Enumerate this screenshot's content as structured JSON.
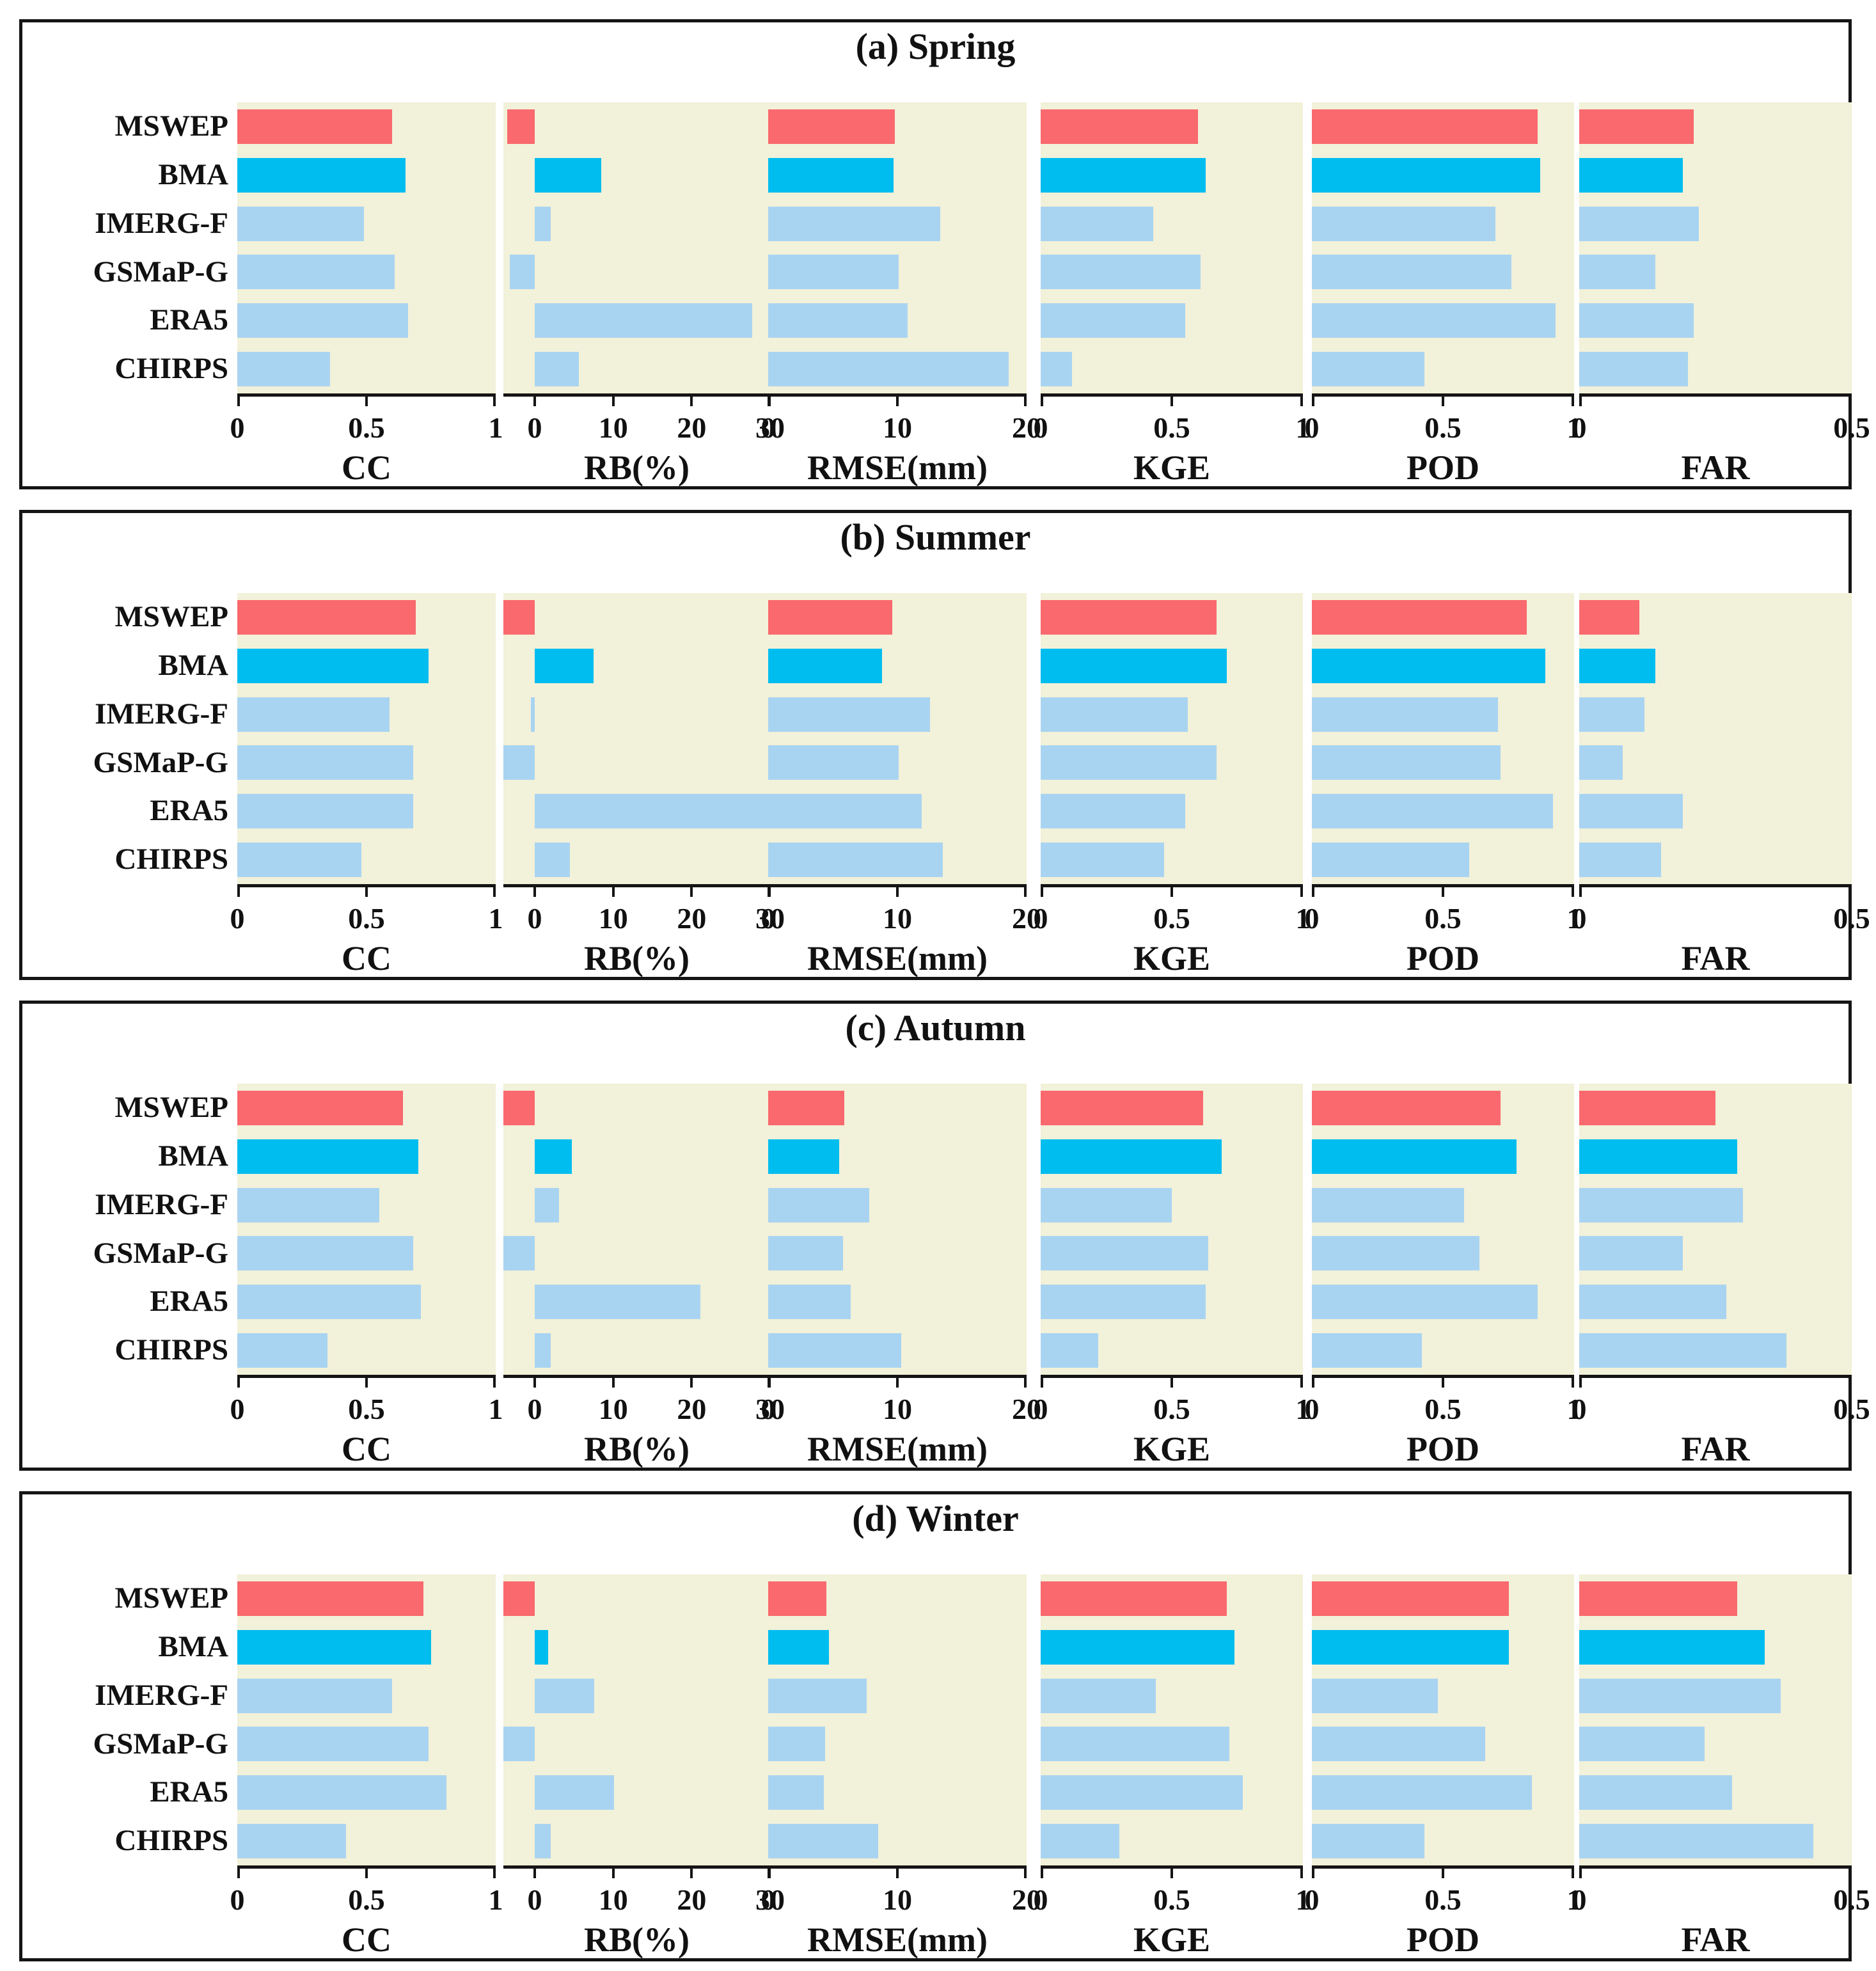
{
  "figure": {
    "background": "#ffffff",
    "plot_background": "#F2F1D9",
    "axis_color": "#151515",
    "series_colors": {
      "MSWEP": "#F9696E",
      "BMA": "#00BDF0",
      "default": "#A9D4F1"
    }
  },
  "chart_data": [
    {
      "type": "bar",
      "orientation": "horizontal",
      "title": "(a) Spring",
      "categories": [
        "MSWEP",
        "BMA",
        "IMERG-F",
        "GSMaP-G",
        "ERA5",
        "CHIRPS"
      ],
      "legend": "none",
      "grid": false,
      "metrics": [
        {
          "label": "CC",
          "xlim": [
            0,
            1
          ],
          "ticks": [
            0,
            0.5,
            1
          ],
          "values": [
            0.6,
            0.65,
            0.49,
            0.61,
            0.66,
            0.36
          ]
        },
        {
          "label": "RB(%)",
          "xlim": [
            -4,
            30
          ],
          "ticks": [
            0,
            10,
            20,
            30
          ],
          "values": [
            -3.5,
            8.5,
            2.0,
            -3.2,
            27.7,
            5.6
          ]
        },
        {
          "label": "RMSE(mm)",
          "xlim": [
            0,
            20
          ],
          "ticks": [
            0,
            10,
            20
          ],
          "values": [
            9.8,
            9.7,
            13.3,
            10.1,
            10.8,
            18.6
          ]
        },
        {
          "label": "KGE",
          "xlim": [
            0,
            1
          ],
          "ticks": [
            0,
            0.5,
            1
          ],
          "values": [
            0.6,
            0.63,
            0.43,
            0.61,
            0.55,
            0.12
          ]
        },
        {
          "label": "POD",
          "xlim": [
            0,
            1
          ],
          "ticks": [
            0,
            0.5,
            1
          ],
          "values": [
            0.86,
            0.87,
            0.7,
            0.76,
            0.93,
            0.43
          ]
        },
        {
          "label": "FAR",
          "xlim": [
            0,
            0.5
          ],
          "ticks": [
            0,
            0.5
          ],
          "values": [
            0.21,
            0.19,
            0.22,
            0.14,
            0.21,
            0.2
          ]
        }
      ]
    },
    {
      "type": "bar",
      "orientation": "horizontal",
      "title": "(b) Summer",
      "categories": [
        "MSWEP",
        "BMA",
        "IMERG-F",
        "GSMaP-G",
        "ERA5",
        "CHIRPS"
      ],
      "legend": "none",
      "grid": false,
      "metrics": [
        {
          "label": "CC",
          "xlim": [
            0,
            1
          ],
          "ticks": [
            0,
            0.5,
            1
          ],
          "values": [
            0.69,
            0.74,
            0.59,
            0.68,
            0.68,
            0.48
          ]
        },
        {
          "label": "RB(%)",
          "xlim": [
            -4,
            30
          ],
          "ticks": [
            0,
            10,
            20,
            30
          ],
          "values": [
            -4.0,
            7.5,
            -0.5,
            -4.0,
            30.0,
            4.5
          ]
        },
        {
          "label": "RMSE(mm)",
          "xlim": [
            0,
            20
          ],
          "ticks": [
            0,
            10,
            20
          ],
          "values": [
            9.6,
            8.8,
            12.5,
            10.1,
            11.9,
            13.5
          ]
        },
        {
          "label": "KGE",
          "xlim": [
            0,
            1
          ],
          "ticks": [
            0,
            0.5,
            1
          ],
          "values": [
            0.67,
            0.71,
            0.56,
            0.67,
            0.55,
            0.47
          ]
        },
        {
          "label": "POD",
          "xlim": [
            0,
            1
          ],
          "ticks": [
            0,
            0.5,
            1
          ],
          "values": [
            0.82,
            0.89,
            0.71,
            0.72,
            0.92,
            0.6
          ]
        },
        {
          "label": "FAR",
          "xlim": [
            0,
            0.5
          ],
          "ticks": [
            0,
            0.5
          ],
          "values": [
            0.11,
            0.14,
            0.12,
            0.08,
            0.19,
            0.15
          ]
        }
      ]
    },
    {
      "type": "bar",
      "orientation": "horizontal",
      "title": "(c) Autumn",
      "categories": [
        "MSWEP",
        "BMA",
        "IMERG-F",
        "GSMaP-G",
        "ERA5",
        "CHIRPS"
      ],
      "legend": "none",
      "grid": false,
      "metrics": [
        {
          "label": "CC",
          "xlim": [
            0,
            1
          ],
          "ticks": [
            0,
            0.5,
            1
          ],
          "values": [
            0.64,
            0.7,
            0.55,
            0.68,
            0.71,
            0.35
          ]
        },
        {
          "label": "RB(%)",
          "xlim": [
            -4,
            30
          ],
          "ticks": [
            0,
            10,
            20,
            30
          ],
          "values": [
            -4.0,
            4.7,
            3.1,
            -4.0,
            21.1,
            2.0
          ]
        },
        {
          "label": "RMSE(mm)",
          "xlim": [
            0,
            20
          ],
          "ticks": [
            0,
            10,
            20
          ],
          "values": [
            5.9,
            5.5,
            7.8,
            5.8,
            6.4,
            10.3
          ]
        },
        {
          "label": "KGE",
          "xlim": [
            0,
            1
          ],
          "ticks": [
            0,
            0.5,
            1
          ],
          "values": [
            0.62,
            0.69,
            0.5,
            0.64,
            0.63,
            0.22
          ]
        },
        {
          "label": "POD",
          "xlim": [
            0,
            1
          ],
          "ticks": [
            0,
            0.5,
            1
          ],
          "values": [
            0.72,
            0.78,
            0.58,
            0.64,
            0.86,
            0.42
          ]
        },
        {
          "label": "FAR",
          "xlim": [
            0,
            0.5
          ],
          "ticks": [
            0,
            0.5
          ],
          "values": [
            0.25,
            0.29,
            0.3,
            0.19,
            0.27,
            0.38
          ]
        }
      ]
    },
    {
      "type": "bar",
      "orientation": "horizontal",
      "title": "(d) Winter",
      "categories": [
        "MSWEP",
        "BMA",
        "IMERG-F",
        "GSMaP-G",
        "ERA5",
        "CHIRPS"
      ],
      "legend": "none",
      "grid": false,
      "metrics": [
        {
          "label": "CC",
          "xlim": [
            0,
            1
          ],
          "ticks": [
            0,
            0.5,
            1
          ],
          "values": [
            0.72,
            0.75,
            0.6,
            0.74,
            0.81,
            0.42
          ]
        },
        {
          "label": "RB(%)",
          "xlim": [
            -4,
            30
          ],
          "ticks": [
            0,
            10,
            20,
            30
          ],
          "values": [
            -4.0,
            1.7,
            7.6,
            -4.0,
            10.1,
            2.0
          ]
        },
        {
          "label": "RMSE(mm)",
          "xlim": [
            0,
            20
          ],
          "ticks": [
            0,
            10,
            20
          ],
          "values": [
            4.5,
            4.7,
            7.6,
            4.4,
            4.3,
            8.5
          ]
        },
        {
          "label": "KGE",
          "xlim": [
            0,
            1
          ],
          "ticks": [
            0,
            0.5,
            1
          ],
          "values": [
            0.71,
            0.74,
            0.44,
            0.72,
            0.77,
            0.3
          ]
        },
        {
          "label": "POD",
          "xlim": [
            0,
            1
          ],
          "ticks": [
            0,
            0.5,
            1
          ],
          "values": [
            0.75,
            0.75,
            0.48,
            0.66,
            0.84,
            0.43
          ]
        },
        {
          "label": "FAR",
          "xlim": [
            0,
            0.5
          ],
          "ticks": [
            0,
            0.5
          ],
          "values": [
            0.29,
            0.34,
            0.37,
            0.23,
            0.28,
            0.43
          ]
        }
      ]
    }
  ]
}
